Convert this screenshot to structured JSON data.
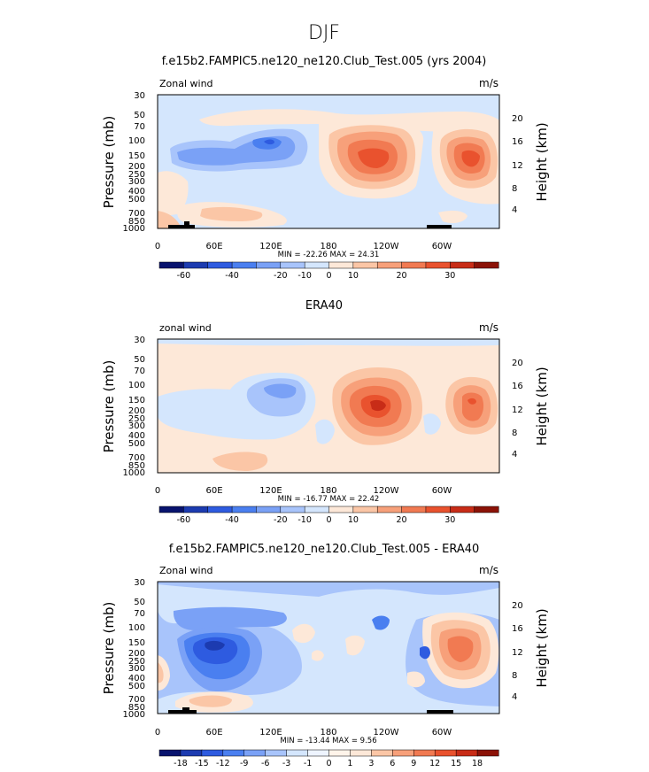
{
  "figure": {
    "title": "DJF"
  },
  "colors": {
    "blues": [
      "#08136e",
      "#1c3bb0",
      "#2e5be0",
      "#4a7ff0",
      "#7aa1f6",
      "#a8c4fb",
      "#d4e6fd"
    ],
    "reds": [
      "#fde8d8",
      "#fbc6a6",
      "#f7a07a",
      "#f17a52",
      "#e9522e",
      "#c82c17",
      "#8b1207"
    ],
    "background_neutral": "#fde8d8",
    "terrain": "#000000"
  },
  "chart_data": [
    {
      "type": "heatmap",
      "title": "f.e15b2.FAMPIC5.ne120_ne120.Club_Test.005 (yrs 2004)",
      "left_label": "Zonal wind",
      "right_label": "m/s",
      "ylabel": "Pressure (mb)",
      "y2label": "Height (km)",
      "x_ticks": [
        "0",
        "60E",
        "120E",
        "180",
        "120W",
        "60W"
      ],
      "y_ticks": [
        "30",
        "50",
        "70",
        "100",
        "150",
        "200",
        "250",
        "300",
        "400",
        "500",
        "700",
        "850",
        "1000"
      ],
      "y2_ticks": [
        "20",
        "16",
        "12",
        "8",
        "4"
      ],
      "stats": "MIN = -22.26   MAX =  24.31",
      "min": -22.26,
      "max": 24.31,
      "colorbar_labels": [
        "-60",
        "-40",
        "-20",
        "-10",
        "0",
        "10",
        "20",
        "30"
      ]
    },
    {
      "type": "heatmap",
      "title": "ERA40",
      "left_label": "zonal wind",
      "right_label": "m/s",
      "ylabel": "Pressure (mb)",
      "y2label": "Height (km)",
      "x_ticks": [
        "0",
        "60E",
        "120E",
        "180",
        "120W",
        "60W"
      ],
      "y_ticks": [
        "30",
        "50",
        "70",
        "100",
        "150",
        "200",
        "250",
        "300",
        "400",
        "500",
        "700",
        "850",
        "1000"
      ],
      "y2_ticks": [
        "20",
        "16",
        "12",
        "8",
        "4"
      ],
      "stats": "MIN = -16.77   MAX =  22.42",
      "min": -16.77,
      "max": 22.42,
      "colorbar_labels": [
        "-60",
        "-40",
        "-20",
        "-10",
        "0",
        "10",
        "20",
        "30"
      ]
    },
    {
      "type": "heatmap",
      "title": "f.e15b2.FAMPIC5.ne120_ne120.Club_Test.005 - ERA40",
      "left_label": "Zonal wind",
      "right_label": "m/s",
      "ylabel": "Pressure (mb)",
      "y2label": "Height (km)",
      "x_ticks": [
        "0",
        "60E",
        "120E",
        "180",
        "120W",
        "60W"
      ],
      "y_ticks": [
        "30",
        "50",
        "70",
        "100",
        "150",
        "200",
        "250",
        "300",
        "400",
        "500",
        "700",
        "850",
        "1000"
      ],
      "y2_ticks": [
        "20",
        "16",
        "12",
        "8",
        "4"
      ],
      "stats": "MIN = -13.44   MAX =  9.56",
      "min": -13.44,
      "max": 9.56,
      "colorbar_labels": [
        "-18",
        "-15",
        "-12",
        "-9",
        "-6",
        "-3",
        "-1",
        "0",
        "1",
        "3",
        "6",
        "9",
        "12",
        "15",
        "18"
      ]
    }
  ]
}
